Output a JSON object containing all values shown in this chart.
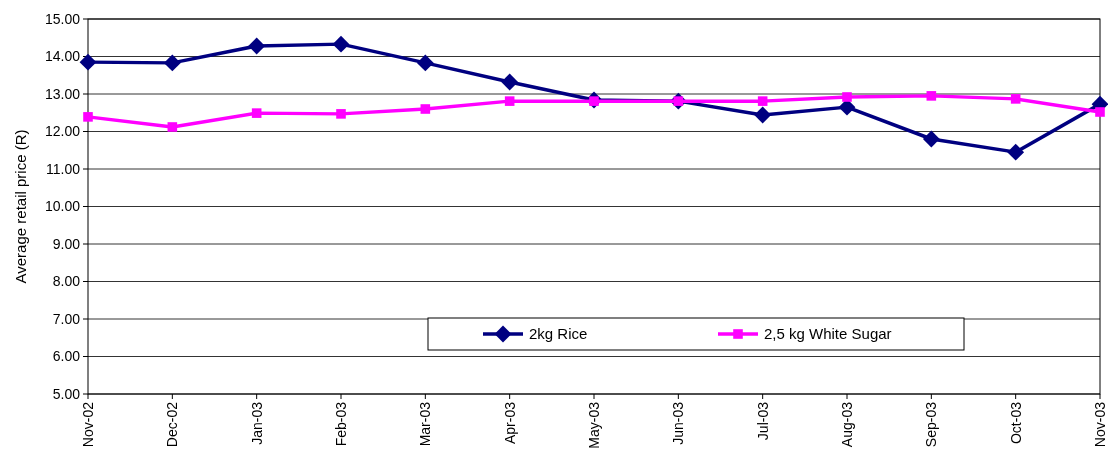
{
  "chart_data": {
    "type": "line",
    "ylabel": "Average retail price (R)",
    "categories": [
      "Nov-02",
      "Dec-02",
      "Jan-03",
      "Feb-03",
      "Mar-03",
      "Apr-03",
      "May-03",
      "Jun-03",
      "Jul-03",
      "Aug-03",
      "Sep-03",
      "Oct-03",
      "Nov-03"
    ],
    "series": [
      {
        "name": "2kg Rice",
        "color": "#000080",
        "marker": "diamond",
        "values": [
          13.85,
          13.83,
          14.28,
          14.33,
          13.83,
          13.32,
          12.84,
          12.81,
          12.44,
          12.65,
          11.8,
          11.45,
          12.73
        ]
      },
      {
        "name": "2,5 kg White Sugar",
        "color": "#ff00ff",
        "marker": "square",
        "values": [
          12.39,
          12.12,
          12.49,
          12.47,
          12.6,
          12.81,
          12.81,
          12.81,
          12.81,
          12.92,
          12.95,
          12.87,
          12.52
        ]
      }
    ],
    "ylim": [
      5,
      15
    ],
    "yticks": [
      {
        "value": 5,
        "label": "5.00"
      },
      {
        "value": 6,
        "label": "6.00"
      },
      {
        "value": 7,
        "label": "7.00"
      },
      {
        "value": 8,
        "label": "8.00"
      },
      {
        "value": 9,
        "label": "9.00"
      },
      {
        "value": 10,
        "label": "10.00"
      },
      {
        "value": 11,
        "label": "11.00"
      },
      {
        "value": 12,
        "label": "12.00"
      },
      {
        "value": 13,
        "label": "13.00"
      },
      {
        "value": 14,
        "label": "14.00"
      },
      {
        "value": 15,
        "label": "15.00"
      }
    ],
    "grid": "y",
    "legend": "bottom",
    "line_style": "solid"
  }
}
